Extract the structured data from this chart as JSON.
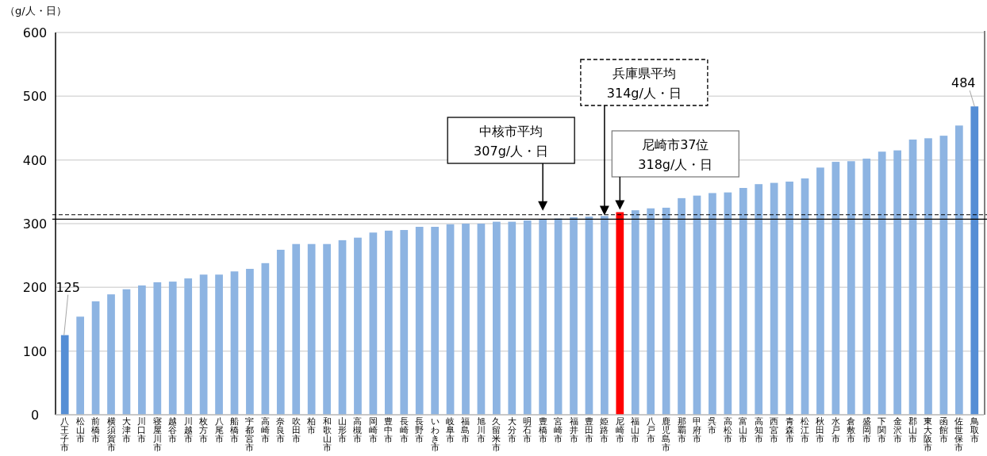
{
  "chart_data": {
    "type": "bar",
    "ylabel": "（g/人・日）",
    "categories": [
      "八王子市",
      "松山市",
      "前橋市",
      "横須賀市",
      "大津市",
      "川口市",
      "寝屋川市",
      "越谷市",
      "川越市",
      "枚方市",
      "八尾市",
      "船橋市",
      "宇都宮市",
      "高崎市",
      "奈良市",
      "吹田市",
      "柏市",
      "和歌山市",
      "山形市",
      "高槻市",
      "岡崎市",
      "豊中市",
      "長崎市",
      "長野市",
      "いわき市",
      "岐阜市",
      "福島市",
      "旭川市",
      "久留米市",
      "大分市",
      "明石市",
      "豊橋市",
      "宮崎市",
      "福井市",
      "豊田市",
      "姫路市",
      "尼崎市",
      "福山市",
      "八戸市",
      "鹿児島市",
      "那覇市",
      "甲府市",
      "呉市",
      "高松市",
      "富山市",
      "高知市",
      "西宮市",
      "青森市",
      "松江市",
      "秋田市",
      "水戸市",
      "倉敷市",
      "盛岡市",
      "下関市",
      "金沢市",
      "郡山市",
      "東大阪市",
      "函館市",
      "佐世保市",
      "鳥取市"
    ],
    "values": [
      125,
      154,
      178,
      189,
      197,
      203,
      208,
      209,
      214,
      220,
      220,
      225,
      229,
      238,
      259,
      268,
      268,
      268,
      274,
      278,
      286,
      289,
      290,
      295,
      295,
      299,
      300,
      300,
      303,
      303,
      305,
      307,
      308,
      310,
      311,
      312,
      318,
      321,
      324,
      325,
      340,
      344,
      348,
      349,
      356,
      362,
      364,
      366,
      371,
      388,
      397,
      398,
      402,
      413,
      415,
      432,
      434,
      438,
      454,
      484
    ],
    "colors": [
      "#558ed5",
      "#8db4e2",
      "#8db4e2",
      "#8db4e2",
      "#8db4e2",
      "#8db4e2",
      "#8db4e2",
      "#8db4e2",
      "#8db4e2",
      "#8db4e2",
      "#8db4e2",
      "#8db4e2",
      "#8db4e2",
      "#8db4e2",
      "#8db4e2",
      "#8db4e2",
      "#8db4e2",
      "#8db4e2",
      "#8db4e2",
      "#8db4e2",
      "#8db4e2",
      "#8db4e2",
      "#8db4e2",
      "#8db4e2",
      "#8db4e2",
      "#8db4e2",
      "#8db4e2",
      "#8db4e2",
      "#8db4e2",
      "#8db4e2",
      "#8db4e2",
      "#8db4e2",
      "#8db4e2",
      "#8db4e2",
      "#8db4e2",
      "#8db4e2",
      "#ff0000",
      "#8db4e2",
      "#8db4e2",
      "#8db4e2",
      "#8db4e2",
      "#8db4e2",
      "#8db4e2",
      "#8db4e2",
      "#8db4e2",
      "#8db4e2",
      "#8db4e2",
      "#8db4e2",
      "#8db4e2",
      "#8db4e2",
      "#8db4e2",
      "#8db4e2",
      "#8db4e2",
      "#8db4e2",
      "#8db4e2",
      "#8db4e2",
      "#8db4e2",
      "#8db4e2",
      "#8db4e2",
      "#558ed5"
    ],
    "value_labels": [
      "125",
      null,
      null,
      null,
      null,
      null,
      null,
      null,
      null,
      null,
      null,
      null,
      null,
      null,
      null,
      null,
      null,
      null,
      null,
      null,
      null,
      null,
      null,
      null,
      null,
      null,
      null,
      null,
      null,
      null,
      null,
      null,
      null,
      null,
      null,
      null,
      null,
      null,
      null,
      null,
      null,
      null,
      null,
      null,
      null,
      null,
      null,
      null,
      null,
      null,
      null,
      null,
      null,
      null,
      null,
      null,
      null,
      null,
      null,
      "484"
    ],
    "ylim": [
      0,
      600
    ],
    "yticks": [
      0,
      100,
      200,
      300,
      400,
      500,
      600
    ],
    "grid": "y",
    "ref_lines": [
      {
        "axis": "y",
        "value": 307,
        "color": "#000000",
        "line_style": "solid"
      },
      {
        "axis": "y",
        "value": 314,
        "color": "#000000",
        "line_style": "dashed"
      }
    ],
    "annotations": [
      "中核市平均\n307g/人・日",
      "兵庫県平均\n314g/人・日",
      "尼崎市37位\n318g/人・日"
    ]
  }
}
